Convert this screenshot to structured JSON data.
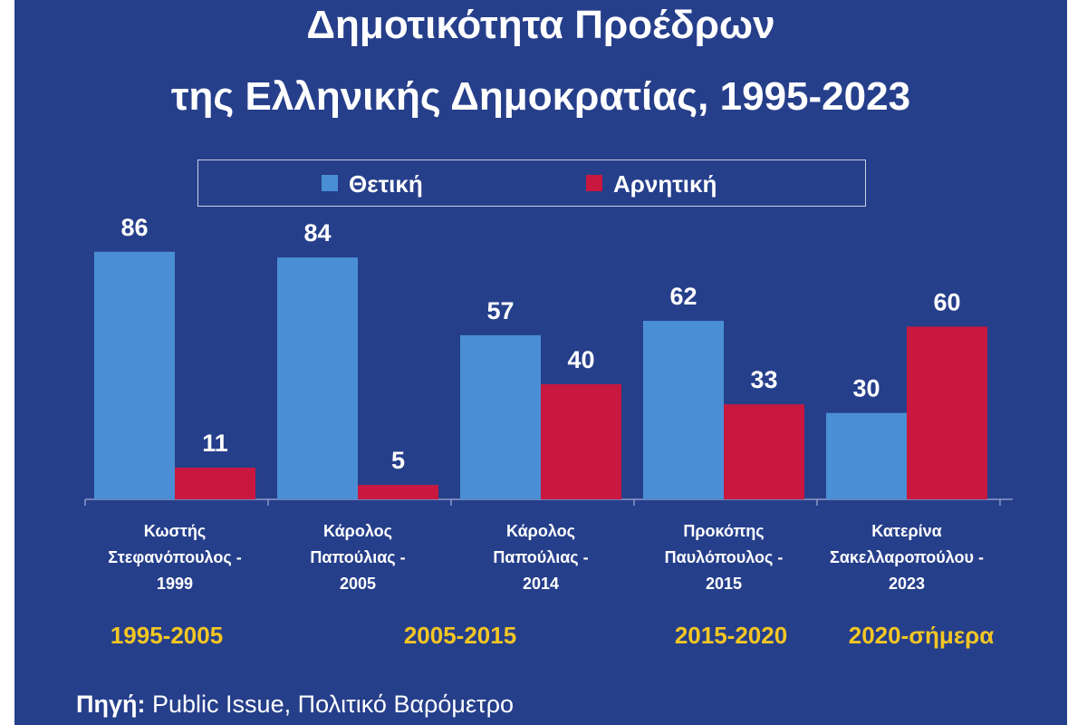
{
  "title": {
    "line1": "Δημοτικότητα Προέδρων",
    "line2": "της Ελληνικής Δημοκρατίας, 1995-2023"
  },
  "legend": {
    "positive": "Θετική",
    "negative": "Αρνητική"
  },
  "colors": {
    "background": "#263f8b",
    "positive": "#4a8fd6",
    "negative": "#c8183f",
    "period_text": "#f3c623",
    "text": "#ffffff"
  },
  "chart_data": {
    "type": "bar",
    "categories": [
      [
        "Κωστής",
        "Στεφανόπουλος -",
        "1999"
      ],
      [
        "Κάρολος",
        "Παπούλιας -",
        "2005"
      ],
      [
        "Κάρολος",
        "Παπούλιας -",
        "2014"
      ],
      [
        "Προκόπης",
        "Παυλόπουλος -",
        "2015"
      ],
      [
        "Κατερίνα",
        "Σακελλαροπούλου -",
        "2023"
      ]
    ],
    "series": [
      {
        "name": "Θετική",
        "values": [
          86,
          84,
          57,
          62,
          30
        ]
      },
      {
        "name": "Αρνητική",
        "values": [
          11,
          5,
          40,
          33,
          60
        ]
      }
    ],
    "ylim": [
      0,
      100
    ],
    "grid": false,
    "legend_position": "top",
    "data_labels": true
  },
  "periods": [
    "1995-2005",
    "2005-2015",
    "2015-2020",
    "2020-σήμερα"
  ],
  "source": {
    "label": "Πηγή:",
    "text": "Public Issue, Πολιτικό Βαρόμετρο"
  }
}
